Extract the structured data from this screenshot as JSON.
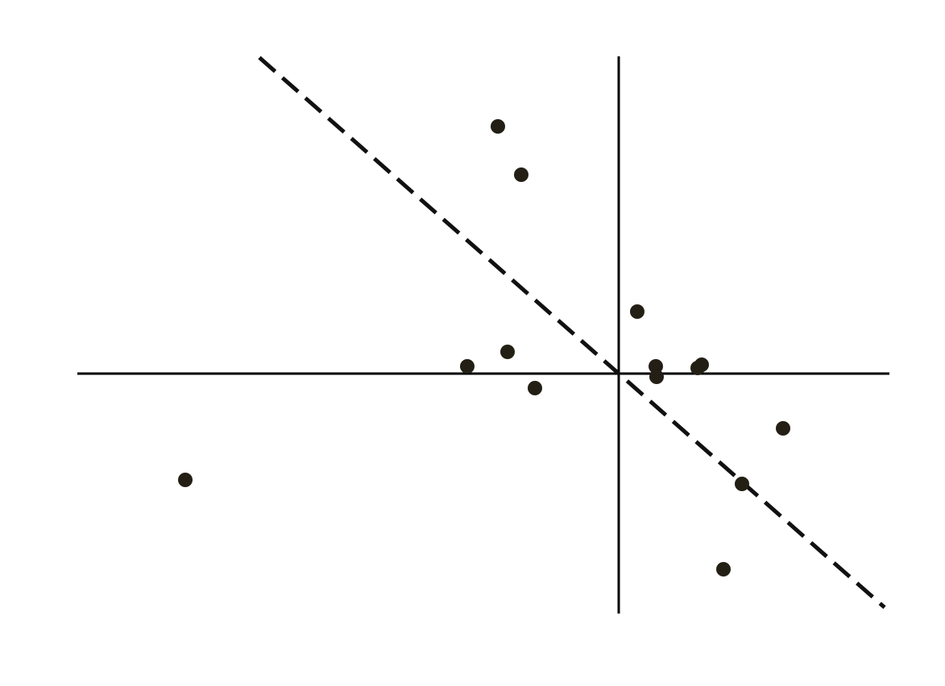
{
  "chart_data": {
    "type": "scatter",
    "title": "",
    "xlabel": "",
    "ylabel": "",
    "xlim": [
      -6.72,
      3.36
    ],
    "ylim": [
      -2.98,
      3.94
    ],
    "grid": false,
    "axes_through_origin": true,
    "point_color": "#231f14",
    "points": [
      {
        "x": -1.5,
        "y": 3.07
      },
      {
        "x": -1.21,
        "y": 2.47
      },
      {
        "x": 0.23,
        "y": 0.77
      },
      {
        "x": -1.38,
        "y": 0.27
      },
      {
        "x": -1.88,
        "y": 0.09
      },
      {
        "x": -1.04,
        "y": -0.18
      },
      {
        "x": 0.46,
        "y": 0.09
      },
      {
        "x": 0.47,
        "y": -0.04
      },
      {
        "x": 0.98,
        "y": 0.07
      },
      {
        "x": 1.03,
        "y": 0.11
      },
      {
        "x": 2.04,
        "y": -0.68
      },
      {
        "x": 1.53,
        "y": -1.37
      },
      {
        "x": 1.3,
        "y": -2.43
      },
      {
        "x": -5.38,
        "y": -1.32
      }
    ],
    "fit_line": {
      "style": "dashed",
      "slope": -0.88,
      "intercept": 0,
      "x_range": [
        -4.46,
        3.3
      ]
    }
  }
}
